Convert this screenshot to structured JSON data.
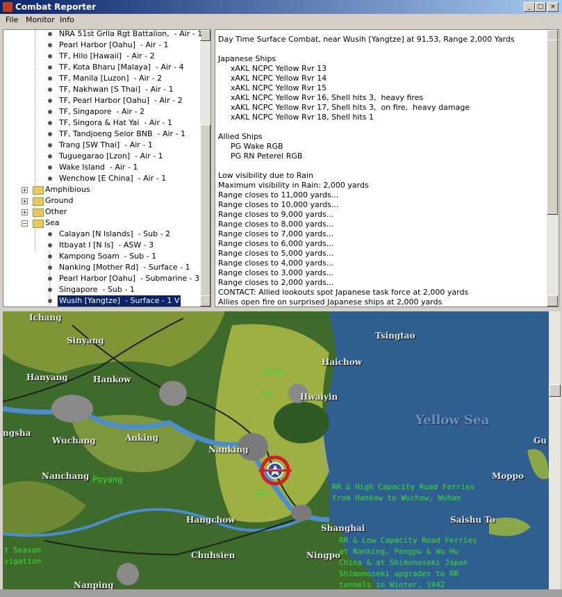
{
  "window": {
    "title": "Combat Reporter"
  },
  "menu": [
    "File",
    "Monitor",
    "Info"
  ],
  "tree": {
    "air_items": [
      "NRA 51st Grlla Rgt Battalion,  - Air - 1",
      "Pearl Harbor [Oahu]  - Air - 1",
      "TF, Hilo [Hawaii]  - Air - 2",
      "TF, Kota Bharu [Malaya]  - Air - 4",
      "TF, Manila [Luzon]  - Air - 2",
      "TF, Nakhwan [S Thai]  - Air - 1",
      "TF, Pearl Harbor [Oahu]  - Air - 2",
      "TF, Singapore  - Air - 2",
      "TF, Singora & Hat Yai  - Air - 1",
      "TF, Tandjoeng Selor BNB  - Air - 1",
      "Trang [SW Thai]  - Air - 1",
      "Tuguegarao [Lzon]  - Air - 1",
      "Wake Island  - Air - 1",
      "Wenchow [E China]  - Air - 1"
    ],
    "folders": [
      "Amphibious",
      "Ground",
      "Other",
      "Sea"
    ],
    "sea_items": [
      "Calayan [N Islands]  - Sub - 2",
      "Itbayat I [N Is]  - ASW - 3",
      "Kampong Soam  - Sub - 1",
      "Nanking [Mother Rd]  - Surface - 1",
      "Pearl Harbor [Oahu]  - Submarine - 3",
      "Singapore  - Sub - 1",
      "Wusih [Yangtze]  - Surface - 1 V"
    ]
  },
  "report": {
    "heading": "Day Time Surface Combat, near Wusih [Yangtze] at 91,53, Range 2,000 Yards",
    "japanese_title": "Japanese Ships",
    "japanese_ships": [
      "xAKL NCPC Yellow Rvr 13",
      "xAKL NCPC Yellow Rvr 14",
      "xAKL NCPC Yellow Rvr 15",
      "xAKL NCPC Yellow Rvr 16, Shell hits 3,  heavy fires",
      "xAKL NCPC Yellow Rvr 17, Shell hits 3,  on fire,  heavy damage",
      "xAKL NCPC Yellow Rvr 18, Shell hits 1"
    ],
    "allied_title": "Allied Ships",
    "allied_ships": [
      "PG Wake RGB",
      "PG RN Peterel RGB"
    ],
    "log": [
      "Low visibility due to Rain",
      "Maximum visibility in Rain: 2,000 yards",
      "Range closes to 11,000 yards...",
      "Range closes to 10,000 yards...",
      "Range closes to 9,000 yards...",
      "Range closes to 8,000 yards...",
      "Range closes to 7,000 yards...",
      "Range closes to 6,000 yards...",
      "Range closes to 5,000 yards...",
      "Range closes to 4,000 yards...",
      "Range closes to 3,000 yards...",
      "Range closes to 2,000 yards...",
      "CONTACT: Allied lookouts spot Japanese task force at 2,000 yards",
      "Allies open fire on surprised Japanese ships at 2,000 yards"
    ]
  },
  "map": {
    "labels": [
      "Ichang",
      "Sinyang",
      "Hanyang",
      "Hankow",
      "Tsingtao",
      "Haichow",
      "Hung",
      "Hu",
      "Hwaiyin",
      "Yellow Sea",
      "ngsha",
      "Wuchang",
      "Anking",
      "Nanking",
      "Gu",
      "Nanchang",
      "Poyang",
      "Moppo",
      "Hu",
      "Hangchow",
      "Saishu To",
      "Shanghai",
      "Chuhsien",
      "Ningpo",
      "Nanping"
    ],
    "notes": [
      "RR & High Capacity Road Ferries",
      "from Hankow to Wuchow, Wuhan",
      "RR & Low Capacity Road Ferries",
      "at Nanking, Pengpu & Wu Hu",
      "China & at Shimonoseki Japan",
      "Shimonoseki upgrades to RR",
      "tunnels in Winter, 1942",
      "t Season",
      "vigation"
    ]
  }
}
